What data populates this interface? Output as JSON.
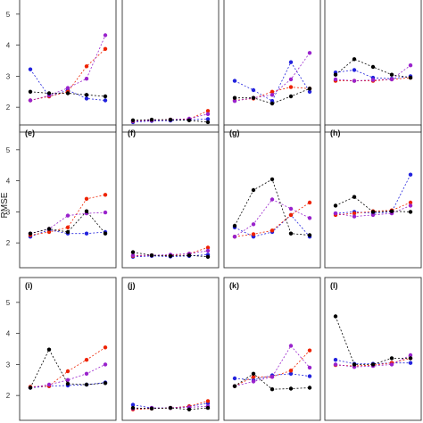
{
  "chart_data": {
    "type": "scatter",
    "ylabel": "RMSE",
    "ylim": [
      1.2,
      5.8
    ],
    "yticks": [
      2,
      3,
      4,
      5
    ],
    "x": [
      1,
      2,
      3,
      4,
      5
    ],
    "grid": false,
    "colors": {
      "blue": "#2222dd",
      "red": "#ee2200",
      "purple": "#9922cc",
      "black": "#000000"
    },
    "panels": [
      {
        "label": "",
        "series": [
          {
            "color": "blue",
            "values": [
              3.22,
              2.35,
              2.55,
              2.28,
              2.22
            ]
          },
          {
            "color": "red",
            "values": [
              2.22,
              2.35,
              2.5,
              3.32,
              3.88
            ]
          },
          {
            "color": "purple",
            "values": [
              2.22,
              2.38,
              2.62,
              2.92,
              4.32
            ]
          },
          {
            "color": "black",
            "values": [
              2.5,
              2.45,
              2.45,
              2.4,
              2.35
            ]
          }
        ]
      },
      {
        "label": "",
        "series": [
          {
            "color": "blue",
            "values": [
              1.52,
              1.56,
              1.57,
              1.6,
              1.62
            ]
          },
          {
            "color": "red",
            "values": [
              1.55,
              1.58,
              1.6,
              1.62,
              1.88
            ]
          },
          {
            "color": "purple",
            "values": [
              1.56,
              1.58,
              1.6,
              1.63,
              1.78
            ]
          },
          {
            "color": "black",
            "values": [
              1.58,
              1.6,
              1.6,
              1.58,
              1.52
            ]
          }
        ]
      },
      {
        "label": "",
        "series": [
          {
            "color": "blue",
            "values": [
              2.85,
              2.55,
              2.2,
              3.45,
              2.5
            ]
          },
          {
            "color": "red",
            "values": [
              2.22,
              2.28,
              2.5,
              2.65,
              2.6
            ]
          },
          {
            "color": "purple",
            "values": [
              2.2,
              2.3,
              2.4,
              2.9,
              3.75
            ]
          },
          {
            "color": "black",
            "values": [
              2.3,
              2.3,
              2.12,
              2.35,
              2.6
            ]
          }
        ]
      },
      {
        "label": "",
        "series": [
          {
            "color": "blue",
            "values": [
              3.12,
              3.2,
              2.95,
              2.92,
              3.0
            ]
          },
          {
            "color": "red",
            "values": [
              2.85,
              2.85,
              2.85,
              2.9,
              2.95
            ]
          },
          {
            "color": "purple",
            "values": [
              2.9,
              2.85,
              2.88,
              2.9,
              3.35
            ]
          },
          {
            "color": "black",
            "values": [
              3.05,
              3.55,
              3.3,
              3.05,
              2.95
            ]
          }
        ]
      },
      {
        "label": "(e)",
        "series": [
          {
            "color": "blue",
            "values": [
              2.2,
              2.42,
              2.3,
              2.3,
              2.35
            ]
          },
          {
            "color": "red",
            "values": [
              2.25,
              2.35,
              2.5,
              3.42,
              3.55
            ]
          },
          {
            "color": "purple",
            "values": [
              2.3,
              2.45,
              2.88,
              2.95,
              2.98
            ]
          },
          {
            "color": "black",
            "values": [
              2.3,
              2.45,
              2.35,
              3.02,
              2.3
            ]
          }
        ]
      },
      {
        "label": "(f)",
        "series": [
          {
            "color": "blue",
            "values": [
              1.55,
              1.58,
              1.56,
              1.58,
              1.62
            ]
          },
          {
            "color": "red",
            "values": [
              1.58,
              1.6,
              1.6,
              1.65,
              1.85
            ]
          },
          {
            "color": "purple",
            "values": [
              1.6,
              1.6,
              1.62,
              1.65,
              1.75
            ]
          },
          {
            "color": "black",
            "values": [
              1.7,
              1.6,
              1.58,
              1.6,
              1.55
            ]
          }
        ]
      },
      {
        "label": "(g)",
        "series": [
          {
            "color": "blue",
            "values": [
              2.5,
              2.2,
              2.35,
              2.9,
              2.2
            ]
          },
          {
            "color": "red",
            "values": [
              2.2,
              2.28,
              2.4,
              2.9,
              3.3
            ]
          },
          {
            "color": "purple",
            "values": [
              2.2,
              2.6,
              3.4,
              3.1,
              2.8
            ]
          },
          {
            "color": "black",
            "values": [
              2.55,
              3.7,
              4.05,
              2.3,
              2.25
            ]
          }
        ]
      },
      {
        "label": "(h)",
        "series": [
          {
            "color": "blue",
            "values": [
              2.95,
              3.0,
              2.95,
              3.0,
              4.2
            ]
          },
          {
            "color": "red",
            "values": [
              2.9,
              2.95,
              3.02,
              3.05,
              3.3
            ]
          },
          {
            "color": "purple",
            "values": [
              2.95,
              2.85,
              2.9,
              2.95,
              3.2
            ]
          },
          {
            "color": "black",
            "values": [
              3.2,
              3.48,
              3.0,
              3.02,
              3.0
            ]
          }
        ]
      },
      {
        "label": "(i)",
        "series": [
          {
            "color": "blue",
            "values": [
              2.25,
              2.3,
              2.32,
              2.35,
              2.42
            ]
          },
          {
            "color": "red",
            "values": [
              2.28,
              2.3,
              2.78,
              3.15,
              3.55
            ]
          },
          {
            "color": "purple",
            "values": [
              2.25,
              2.35,
              2.5,
              2.7,
              3.0
            ]
          },
          {
            "color": "black",
            "values": [
              2.25,
              3.48,
              2.38,
              2.35,
              2.4
            ]
          }
        ]
      },
      {
        "label": "(j)",
        "series": [
          {
            "color": "blue",
            "values": [
              1.7,
              1.6,
              1.6,
              1.65,
              1.75
            ]
          },
          {
            "color": "red",
            "values": [
              1.55,
              1.58,
              1.6,
              1.65,
              1.82
            ]
          },
          {
            "color": "purple",
            "values": [
              1.58,
              1.6,
              1.6,
              1.62,
              1.65
            ]
          },
          {
            "color": "black",
            "values": [
              1.6,
              1.58,
              1.6,
              1.55,
              1.6
            ]
          }
        ]
      },
      {
        "label": "(k)",
        "series": [
          {
            "color": "blue",
            "values": [
              2.55,
              2.5,
              2.65,
              2.7,
              2.62
            ]
          },
          {
            "color": "red",
            "values": [
              2.3,
              2.6,
              2.6,
              2.8,
              3.45
            ]
          },
          {
            "color": "purple",
            "values": [
              2.3,
              2.45,
              2.6,
              3.6,
              2.9
            ]
          },
          {
            "color": "black",
            "values": [
              2.3,
              2.7,
              2.2,
              2.22,
              2.25
            ]
          }
        ]
      },
      {
        "label": "(l)",
        "series": [
          {
            "color": "blue",
            "values": [
              3.15,
              3.02,
              3.02,
              3.05,
              3.05
            ]
          },
          {
            "color": "red",
            "values": [
              2.98,
              2.95,
              2.98,
              3.05,
              3.2
            ]
          },
          {
            "color": "purple",
            "values": [
              3.0,
              2.92,
              2.95,
              3.0,
              3.3
            ]
          },
          {
            "color": "black",
            "values": [
              4.55,
              3.0,
              3.0,
              3.2,
              3.2
            ]
          }
        ]
      }
    ]
  }
}
